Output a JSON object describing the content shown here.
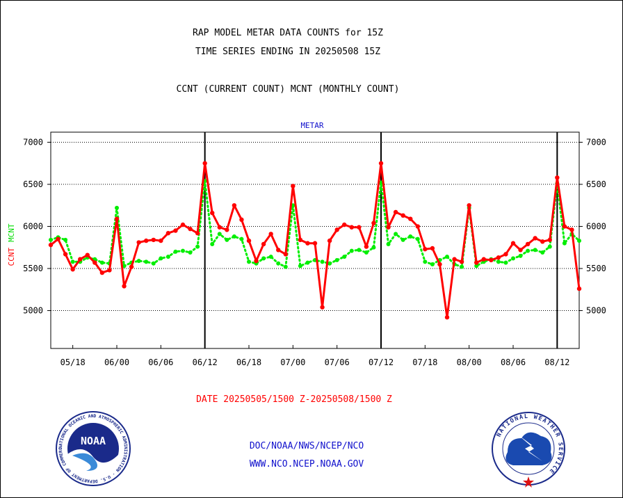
{
  "titles": {
    "line1": "RAP MODEL METAR DATA COUNTS for 15Z",
    "line2": "TIME SERIES ENDING IN 20250508 15Z",
    "line3": "CCNT (CURRENT COUNT) MCNT (MONTHLY COUNT)"
  },
  "date_range": "DATE 20250505/1500 Z-20250508/1500 Z",
  "footer": {
    "org": "DOC/NOAA/NWS/NCEP/NCO",
    "url": "WWW.NCO.NCEP.NOAA.GOV"
  },
  "logos": {
    "noaa": {
      "name": "NOAA",
      "ring_text": "NATIONAL OCEANIC AND ATMOSPHERIC ADMINISTRATION · U.S. DEPARTMENT OF COMMERCE"
    },
    "nws": {
      "ring_text": "NATIONAL WEATHER SERVICE"
    }
  },
  "colors": {
    "ccnt": "#ff0000",
    "mcnt": "#00ee00",
    "accent": "#1010cc",
    "grid": "#000000"
  },
  "chart_data": {
    "type": "line",
    "title": "METAR",
    "xlabel": "",
    "ylabel_left": {
      "ccnt": "CCNT",
      "mcnt": "MCNT"
    },
    "ylim": [
      4550,
      7120
    ],
    "yticks": [
      5000,
      5500,
      6000,
      6500,
      7000
    ],
    "x_tick_labels": [
      "05/18",
      "06/00",
      "06/06",
      "06/12",
      "06/18",
      "07/00",
      "07/06",
      "07/12",
      "07/18",
      "08/00",
      "08/06",
      "08/12"
    ],
    "x_tick_hours": [
      3,
      9,
      15,
      21,
      27,
      33,
      39,
      45,
      51,
      57,
      63,
      69
    ],
    "x_range_hours": [
      0,
      72
    ],
    "day_boundaries_hours": [
      21,
      45,
      69
    ],
    "grid": true,
    "series": [
      {
        "name": "CCNT",
        "color": "#ff0000",
        "style": "solid",
        "values": [
          5780,
          5850,
          5670,
          5490,
          5610,
          5660,
          5570,
          5450,
          5480,
          6090,
          5290,
          5520,
          5810,
          5830,
          5840,
          5830,
          5920,
          5950,
          6020,
          5970,
          5920,
          6750,
          6160,
          5990,
          5960,
          6250,
          6080,
          5830,
          5590,
          5790,
          5910,
          5720,
          5670,
          6480,
          5840,
          5800,
          5800,
          5040,
          5830,
          5960,
          6020,
          5990,
          5990,
          5760,
          6040,
          6750,
          5990,
          6170,
          6130,
          6090,
          6000,
          5730,
          5740,
          5550,
          4920,
          5610,
          5580,
          6250,
          5570,
          5610,
          5600,
          5630,
          5670,
          5800,
          5720,
          5790,
          5860,
          5820,
          5840,
          6580,
          6000,
          5960,
          5260
        ]
      },
      {
        "name": "MCNT",
        "color": "#00ee00",
        "style": "dotted",
        "values": [
          5840,
          5870,
          5840,
          5580,
          5580,
          5630,
          5610,
          5570,
          5560,
          6220,
          5530,
          5570,
          5590,
          5580,
          5560,
          5620,
          5640,
          5700,
          5710,
          5690,
          5760,
          6540,
          5790,
          5910,
          5840,
          5880,
          5850,
          5580,
          5560,
          5620,
          5640,
          5560,
          5520,
          6250,
          5530,
          5570,
          5600,
          5580,
          5560,
          5600,
          5640,
          5710,
          5720,
          5690,
          5750,
          6520,
          5790,
          5910,
          5840,
          5880,
          5850,
          5580,
          5550,
          5600,
          5640,
          5550,
          5520,
          6220,
          5530,
          5580,
          5610,
          5580,
          5570,
          5620,
          5650,
          5710,
          5720,
          5690,
          5760,
          6510,
          5800,
          5910,
          5830
        ]
      }
    ]
  }
}
